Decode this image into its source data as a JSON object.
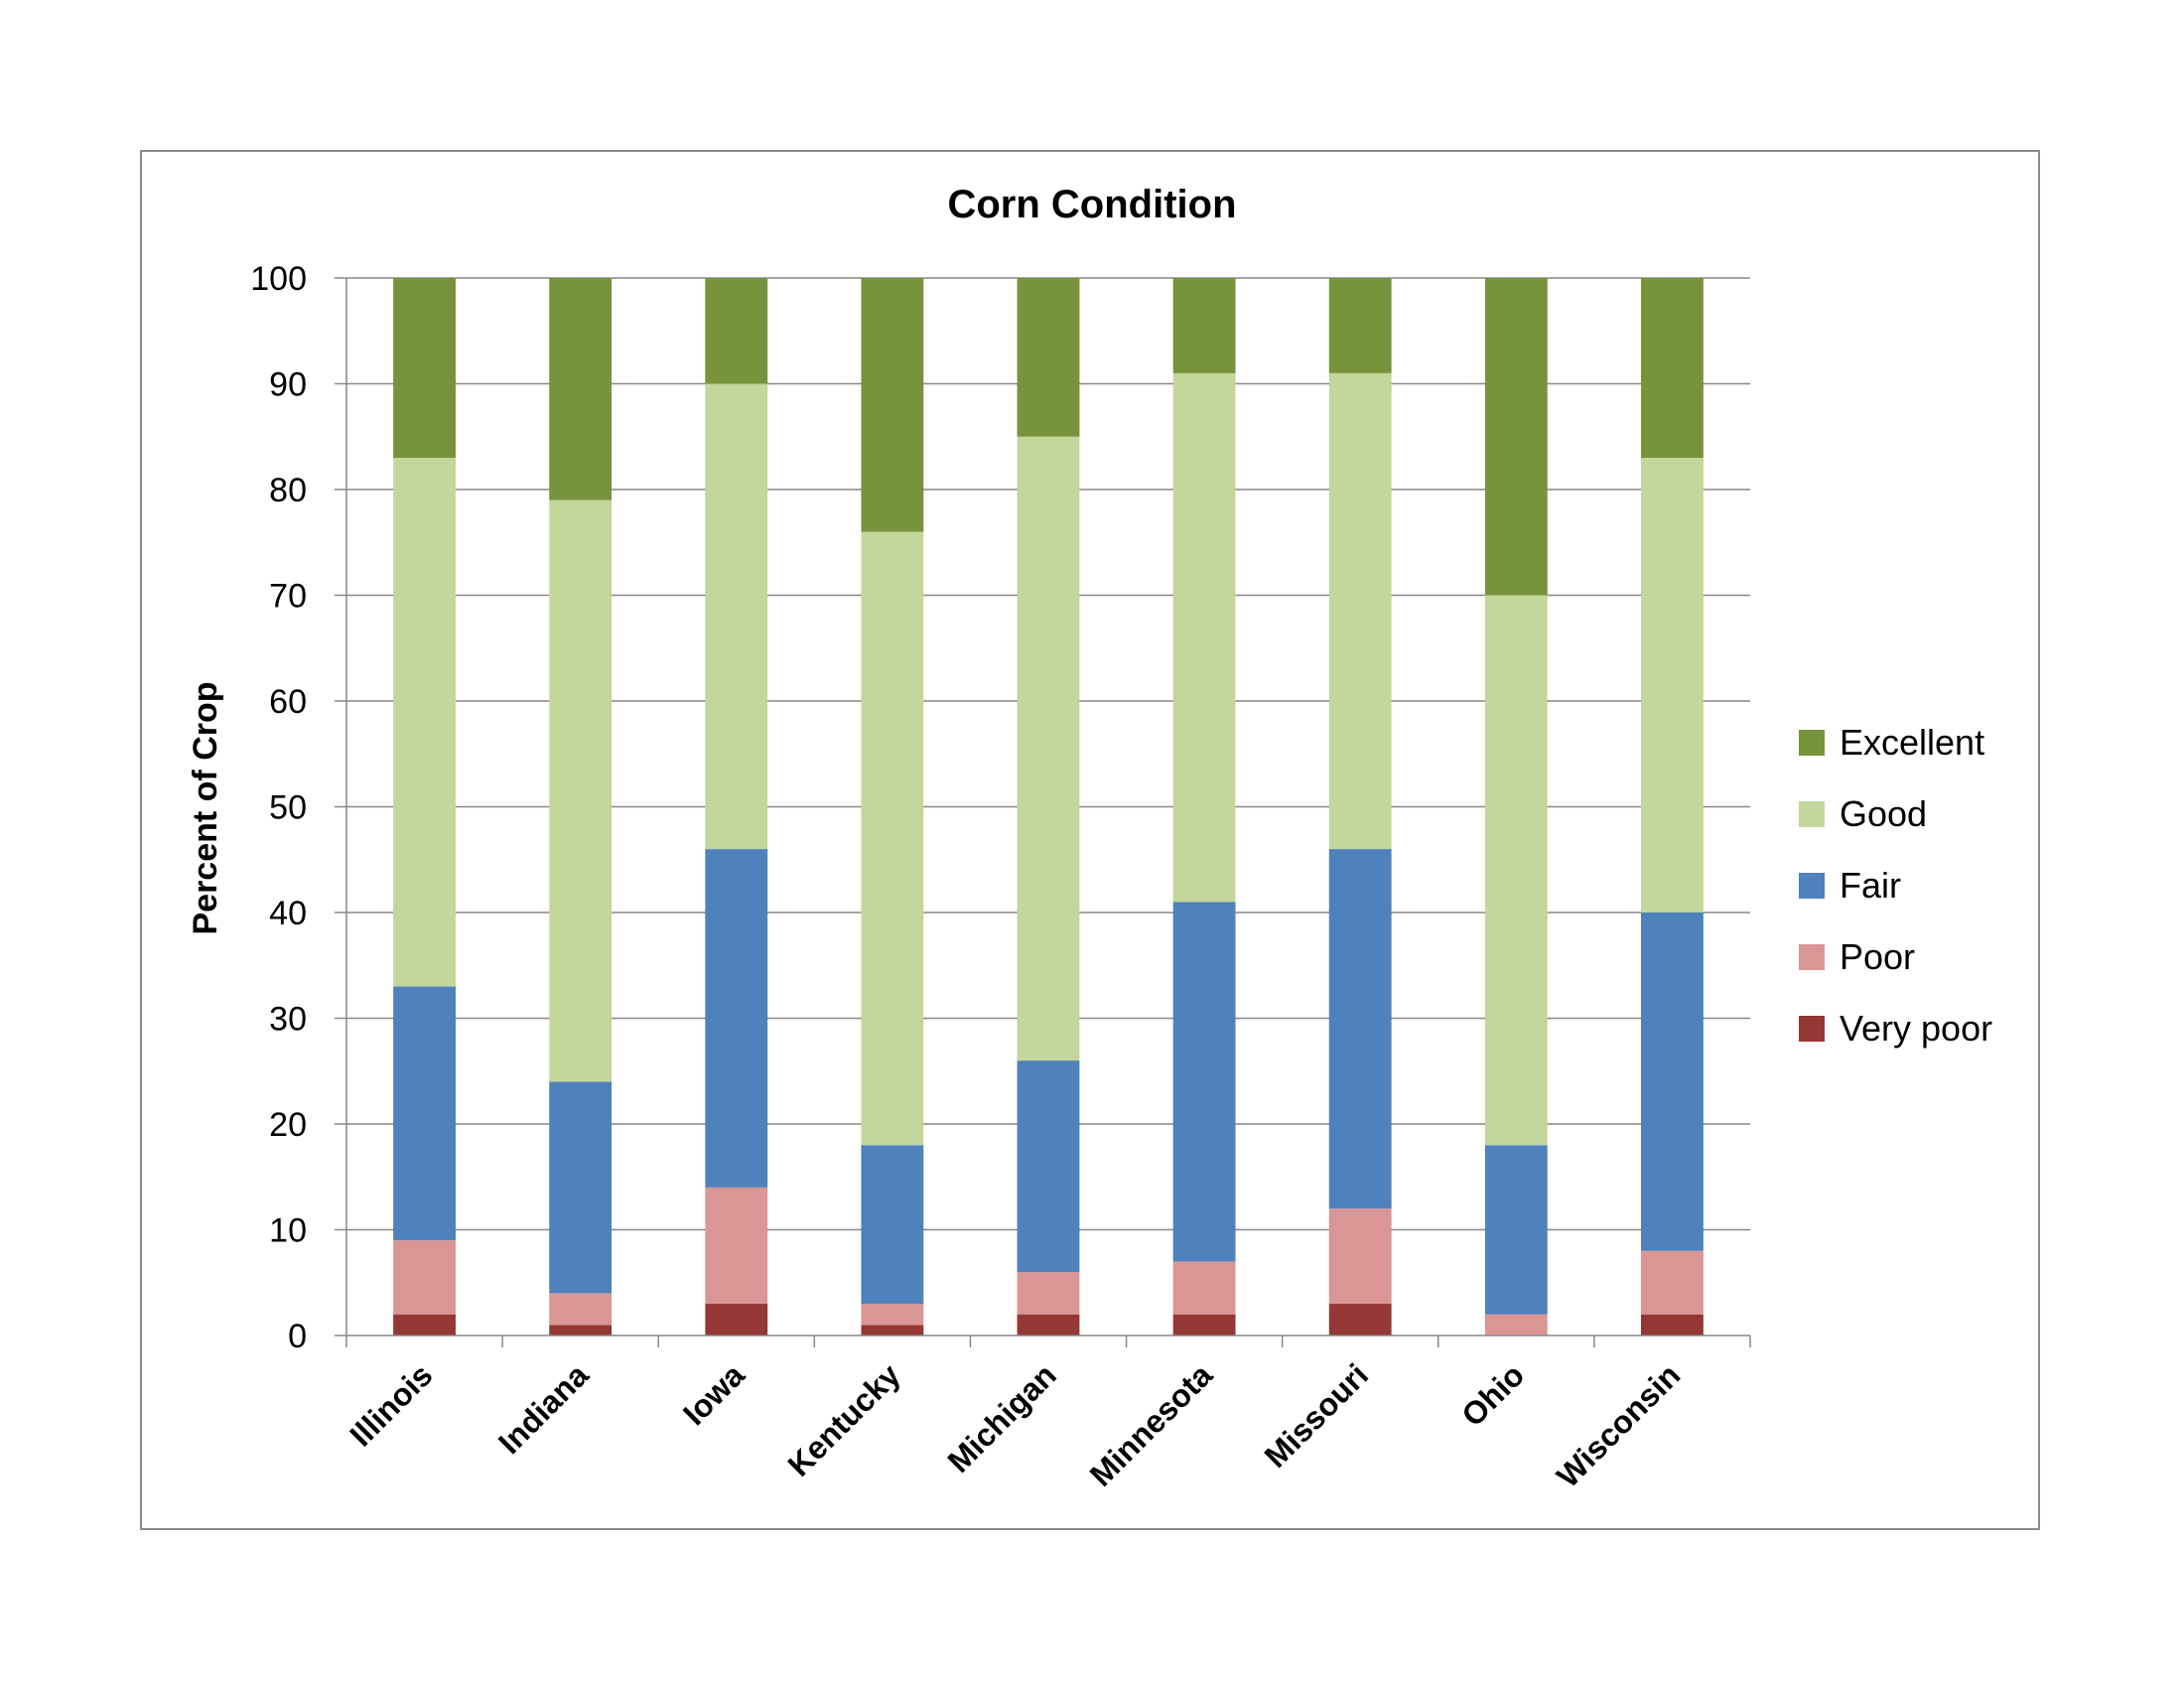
{
  "chart_data": {
    "type": "bar",
    "stacked": true,
    "title": "Corn Condition",
    "xlabel": "",
    "ylabel": "Percent of Crop",
    "ylim": [
      0,
      100
    ],
    "yticks": [
      "0",
      "10",
      "20",
      "30",
      "40",
      "50",
      "60",
      "70",
      "80",
      "90",
      "100"
    ],
    "grid": true,
    "legend_position": "right",
    "categories": [
      "Illinois",
      "Indiana",
      "Iowa",
      "Kentucky",
      "Michigan",
      "Minnesota",
      "Missouri",
      "Ohio",
      "Wisconsin"
    ],
    "series": [
      {
        "name": "Very poor",
        "color": "#953735",
        "values": [
          2,
          1,
          3,
          1,
          2,
          2,
          3,
          0,
          2
        ]
      },
      {
        "name": "Poor",
        "color": "#d99694",
        "values": [
          7,
          3,
          11,
          2,
          4,
          5,
          9,
          2,
          6
        ]
      },
      {
        "name": "Fair",
        "color": "#4f81bd",
        "values": [
          24,
          20,
          32,
          15,
          20,
          34,
          34,
          16,
          32
        ]
      },
      {
        "name": "Good",
        "color": "#c3d69b",
        "values": [
          50,
          55,
          44,
          58,
          59,
          50,
          45,
          52,
          43
        ]
      },
      {
        "name": "Excellent",
        "color": "#77933c",
        "values": [
          17,
          21,
          10,
          24,
          15,
          9,
          9,
          30,
          17
        ]
      }
    ],
    "legend_order": [
      "Excellent",
      "Good",
      "Fair",
      "Poor",
      "Very poor"
    ]
  },
  "style": {
    "gridline_color": "#878787",
    "axis_color": "#878787",
    "frame_color": "#8c8c8c"
  }
}
